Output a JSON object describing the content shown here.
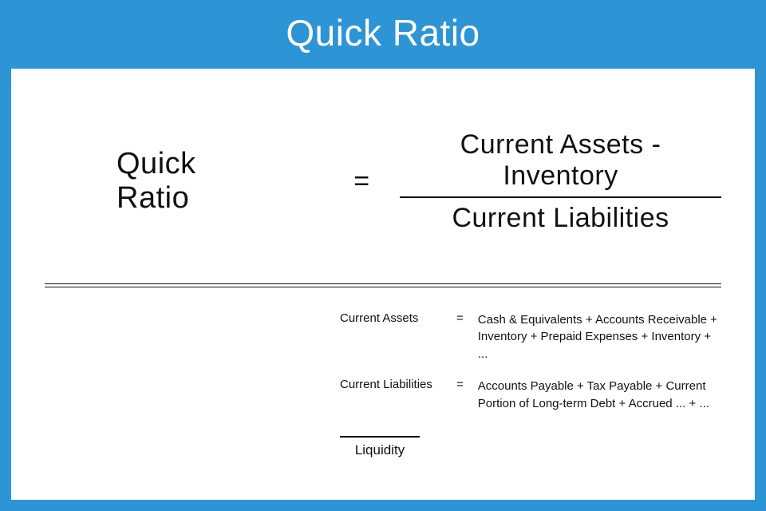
{
  "colors": {
    "accent": "#2d94d6",
    "card_bg": "#ffffff",
    "text": "#111111"
  },
  "header": {
    "title": "Quick Ratio"
  },
  "formula": {
    "lhs": "Quick Ratio",
    "eq": "=",
    "numerator": "Current Assets - Inventory",
    "denominator": "Current Liabilities"
  },
  "definitions": [
    {
      "term": "Current Assets",
      "eq": "=",
      "expansion": "Cash & Equivalents + Accounts Receivable + Inventory + Prepaid Expenses + Inventory + ..."
    },
    {
      "term": "Current Liabilities",
      "eq": "=",
      "expansion": "Accounts Payable + Tax Payable + Current Portion of Long-term Debt + Accrued ... + ..."
    }
  ],
  "category": {
    "label": "Liquidity"
  }
}
